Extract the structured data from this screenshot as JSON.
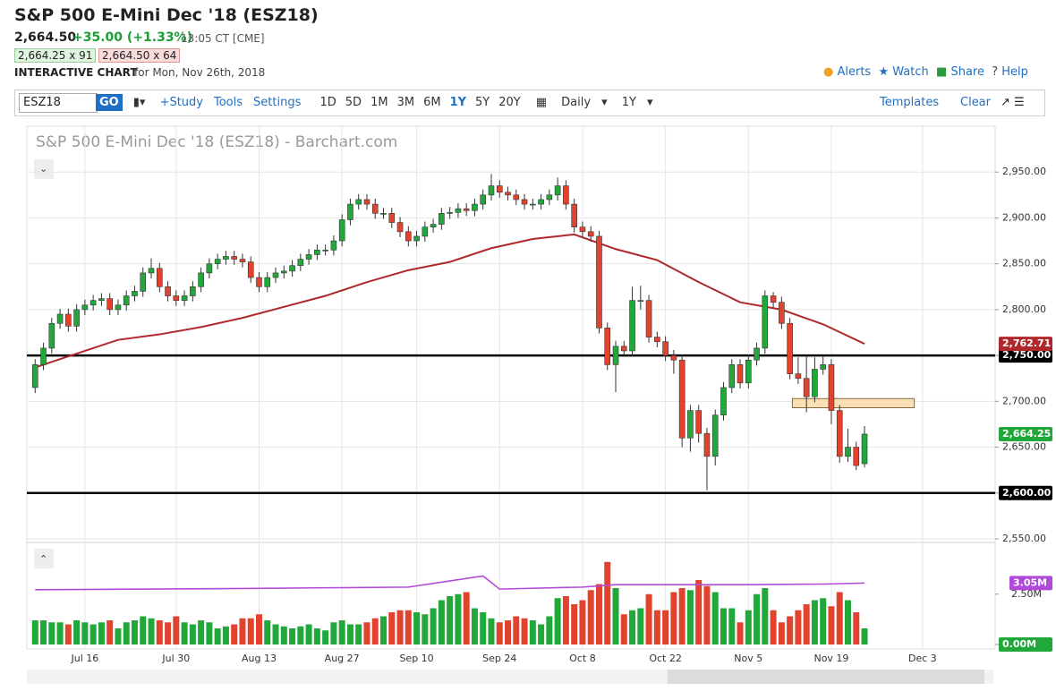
{
  "header": {
    "title": "S&P 500 E-Mini Dec '18 (ESZ18)",
    "last": "2,664.50",
    "change": "+35.00 (+1.33%)",
    "time": "13:05 CT [CME]",
    "bid": "2,664.25 x 91",
    "ask": "2,664.50 x 64",
    "chart_label": "INTERACTIVE CHART",
    "date": "for Mon, Nov 26th, 2018",
    "actions": [
      "Alerts",
      "Watch",
      "Share",
      "Help"
    ]
  },
  "toolbar": {
    "symbol": "ESZ18",
    "go": "GO",
    "links": [
      "+Study",
      "Tools",
      "Settings"
    ],
    "ranges": [
      "1D",
      "5D",
      "1M",
      "3M",
      "6M",
      "1Y",
      "5Y",
      "20Y"
    ],
    "interval": "Daily",
    "period": "1Y",
    "templates": "Templates",
    "clear": "Clear"
  },
  "chart_data": [
    {
      "type": "candlestick",
      "title": "S&P 500 E-Mini Dec '18 (ESZ18) - Barchart.com",
      "open": [
        2715,
        2740,
        2758,
        2785,
        2795,
        2782,
        2800,
        2805,
        2810,
        2812,
        2800,
        2805,
        2815,
        2820,
        2840,
        2845,
        2825,
        2815,
        2810,
        2815,
        2825,
        2840,
        2850,
        2855,
        2858,
        2855,
        2852,
        2835,
        2825,
        2835,
        2840,
        2842,
        2848,
        2855,
        2860,
        2865,
        2865,
        2875,
        2898,
        2915,
        2920,
        2915,
        2905,
        2905,
        2895,
        2885,
        2875,
        2880,
        2890,
        2893,
        2905,
        2906,
        2910,
        2908,
        2915,
        2925,
        2935,
        2928,
        2925,
        2920,
        2915,
        2915,
        2920,
        2925,
        2935,
        2915,
        2890,
        2885,
        2880,
        2780,
        2740,
        2760,
        2755,
        2810,
        2810,
        2770,
        2765,
        2750,
        2745,
        2660,
        2690,
        2665,
        2640,
        2685,
        2715,
        2740,
        2720,
        2745,
        2758,
        2815,
        2808,
        2785,
        2730,
        2725,
        2705,
        2735,
        2740,
        2690,
        2640,
        2650,
        2632
      ],
      "high": [
        2746,
        2764,
        2791,
        2801,
        2801,
        2806,
        2811,
        2816,
        2818,
        2818,
        2811,
        2821,
        2826,
        2846,
        2856,
        2851,
        2831,
        2821,
        2821,
        2831,
        2846,
        2856,
        2861,
        2864,
        2864,
        2861,
        2858,
        2841,
        2841,
        2846,
        2848,
        2854,
        2861,
        2866,
        2871,
        2871,
        2881,
        2904,
        2921,
        2926,
        2926,
        2921,
        2911,
        2911,
        2901,
        2891,
        2886,
        2896,
        2899,
        2911,
        2912,
        2916,
        2916,
        2921,
        2931,
        2948,
        2941,
        2934,
        2931,
        2926,
        2921,
        2926,
        2931,
        2944,
        2941,
        2921,
        2896,
        2891,
        2886,
        2786,
        2766,
        2766,
        2825,
        2826,
        2816,
        2776,
        2771,
        2756,
        2751,
        2696,
        2696,
        2671,
        2691,
        2721,
        2746,
        2746,
        2751,
        2764,
        2821,
        2819,
        2814,
        2791,
        2748,
        2750,
        2748,
        2750,
        2746,
        2696,
        2670,
        2656,
        2673
      ],
      "low": [
        2709,
        2734,
        2752,
        2779,
        2776,
        2776,
        2794,
        2799,
        2804,
        2794,
        2794,
        2799,
        2809,
        2814,
        2834,
        2819,
        2809,
        2804,
        2804,
        2809,
        2819,
        2834,
        2844,
        2849,
        2849,
        2846,
        2829,
        2819,
        2819,
        2829,
        2834,
        2836,
        2842,
        2849,
        2854,
        2859,
        2859,
        2869,
        2892,
        2909,
        2909,
        2899,
        2899,
        2889,
        2879,
        2869,
        2869,
        2874,
        2884,
        2887,
        2899,
        2900,
        2902,
        2902,
        2909,
        2919,
        2922,
        2919,
        2914,
        2909,
        2909,
        2909,
        2914,
        2919,
        2909,
        2884,
        2879,
        2874,
        2774,
        2734,
        2710,
        2749,
        2749,
        2800,
        2764,
        2759,
        2744,
        2730,
        2650,
        2645,
        2655,
        2603,
        2630,
        2679,
        2709,
        2714,
        2714,
        2739,
        2752,
        2802,
        2779,
        2724,
        2719,
        2688,
        2699,
        2729,
        2675,
        2633,
        2634,
        2625,
        2628
      ],
      "close": [
        2740,
        2758,
        2785,
        2795,
        2782,
        2800,
        2805,
        2810,
        2812,
        2800,
        2805,
        2815,
        2820,
        2840,
        2845,
        2825,
        2815,
        2810,
        2815,
        2825,
        2840,
        2850,
        2855,
        2858,
        2855,
        2852,
        2835,
        2825,
        2835,
        2840,
        2842,
        2848,
        2855,
        2860,
        2865,
        2865,
        2875,
        2898,
        2915,
        2920,
        2915,
        2905,
        2905,
        2895,
        2885,
        2875,
        2880,
        2890,
        2893,
        2905,
        2906,
        2910,
        2908,
        2915,
        2925,
        2935,
        2928,
        2925,
        2920,
        2915,
        2915,
        2920,
        2925,
        2935,
        2915,
        2890,
        2885,
        2880,
        2780,
        2740,
        2760,
        2755,
        2810,
        2810,
        2770,
        2765,
        2750,
        2745,
        2660,
        2690,
        2665,
        2640,
        2685,
        2715,
        2740,
        2720,
        2745,
        2758,
        2815,
        2808,
        2785,
        2730,
        2725,
        2705,
        2735,
        2740,
        2690,
        2640,
        2650,
        2630,
        2664.25
      ],
      "close_label": "2,664.25",
      "up_color": "#22a83a",
      "down_color": "#e2432e",
      "xlim": [
        -1,
        115.75
      ],
      "xticks": [
        {
          "value": 6,
          "label": "Jul 16"
        },
        {
          "value": 17,
          "label": "Jul 30"
        },
        {
          "value": 27,
          "label": "Aug 13"
        },
        {
          "value": 37,
          "label": "Aug 27"
        },
        {
          "value": 46,
          "label": "Sep 10"
        },
        {
          "value": 56,
          "label": "Sep 24"
        },
        {
          "value": 66,
          "label": "Oct 8"
        },
        {
          "value": 76,
          "label": "Oct 22"
        },
        {
          "value": 86,
          "label": "Nov 5"
        },
        {
          "value": 96,
          "label": "Nov 19"
        },
        {
          "value": 107,
          "label": "Dec 3"
        }
      ],
      "ylim": [
        2550,
        3000
      ],
      "yticks": [
        {
          "value": 2550,
          "label": "2,550.00"
        },
        {
          "value": 2600,
          "label": "2,600.00"
        },
        {
          "value": 2650,
          "label": "2,650.00"
        },
        {
          "value": 2700,
          "label": "2,700.00"
        },
        {
          "value": 2750,
          "label": "2,750.00"
        },
        {
          "value": 2800,
          "label": "2,800.00"
        },
        {
          "value": 2850,
          "label": "2,850.00"
        },
        {
          "value": 2900,
          "label": "2,900.00"
        },
        {
          "value": 2950,
          "label": "2,950.00"
        }
      ],
      "grid": true,
      "moving_average": {
        "x": [
          0,
          5,
          10,
          15,
          20,
          25,
          30,
          35,
          40,
          45,
          50,
          55,
          60,
          65,
          70,
          75,
          80,
          85,
          90,
          95,
          100
        ],
        "values": [
          2737,
          2752,
          2767,
          2773,
          2781,
          2791,
          2803,
          2815,
          2830,
          2843,
          2852,
          2867,
          2877,
          2882,
          2866,
          2854,
          2830,
          2808,
          2800,
          2784,
          2762.71
        ],
        "color": "#b0282b",
        "last_label": "2,762.71"
      },
      "hlines": [
        {
          "value": 2750,
          "label": "2,750.00"
        },
        {
          "value": 2600,
          "label": "2,600.00"
        }
      ],
      "zone": {
        "x": [
          91.3,
          106
        ],
        "y": [
          2693,
          2703
        ],
        "color": "#f9dfb5"
      }
    },
    {
      "type": "bar",
      "values": [
        1.2,
        1.2,
        1.1,
        1.1,
        1.0,
        1.2,
        1.1,
        1.0,
        1.1,
        1.2,
        0.8,
        1.1,
        1.2,
        1.4,
        1.3,
        1.2,
        1.1,
        1.4,
        1.1,
        1.0,
        1.2,
        1.1,
        0.8,
        0.9,
        1.0,
        1.3,
        1.3,
        1.5,
        1.2,
        1.0,
        0.9,
        0.8,
        0.9,
        1.0,
        0.8,
        0.7,
        1.1,
        1.2,
        1.0,
        1.0,
        1.1,
        1.3,
        1.4,
        1.6,
        1.7,
        1.7,
        1.6,
        1.5,
        1.8,
        2.2,
        2.4,
        2.5,
        2.6,
        1.8,
        1.6,
        1.3,
        1.1,
        1.2,
        1.4,
        1.3,
        1.2,
        1.0,
        1.4,
        2.3,
        2.4,
        2.0,
        2.2,
        2.7,
        3.0,
        4.1,
        2.8,
        1.5,
        1.7,
        1.8,
        2.5,
        1.7,
        1.7,
        2.6,
        2.8,
        2.7,
        3.2,
        2.9,
        2.6,
        1.8,
        1.8,
        1.1,
        1.7,
        2.5,
        2.8,
        1.7,
        1.1,
        1.4,
        1.7,
        2.0,
        2.2,
        2.3,
        1.9,
        2.6,
        2.2,
        1.6,
        0.8
      ],
      "ylim": [
        0,
        4.8
      ],
      "yticks": [
        {
          "value": 0,
          "label": "0.00M"
        },
        {
          "value": 2.5,
          "label": "2.50M"
        }
      ],
      "average": {
        "x": [
          0,
          25,
          45,
          54,
          56,
          66,
          70,
          85,
          95,
          100
        ],
        "values": [
          2.72,
          2.78,
          2.85,
          3.4,
          2.75,
          2.85,
          2.97,
          2.97,
          3.0,
          3.05
        ],
        "color": "#b14ad8",
        "last_label": "3.05M"
      }
    }
  ]
}
